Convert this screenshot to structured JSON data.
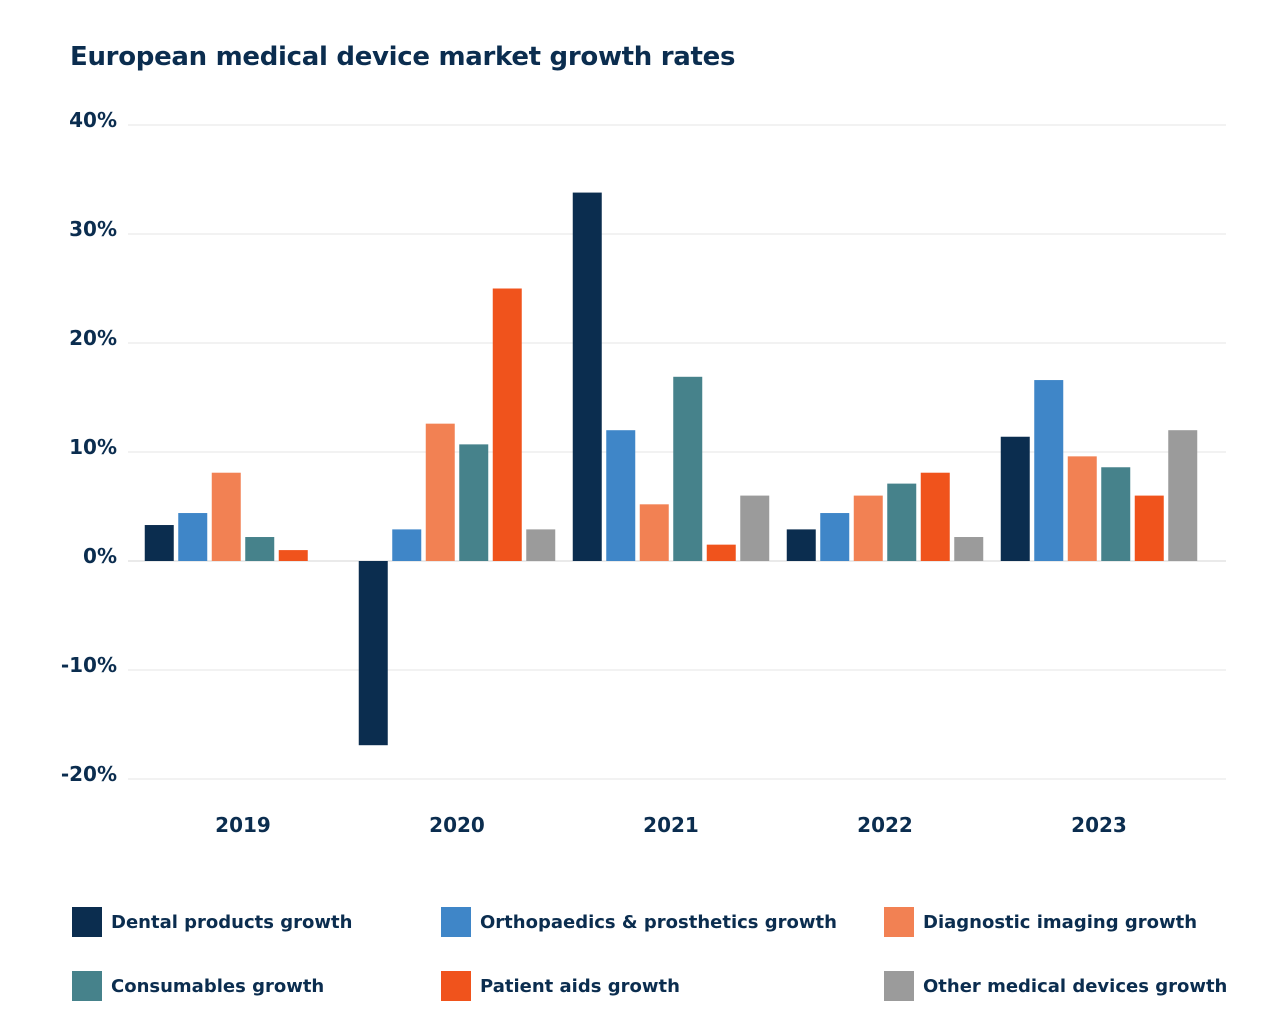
{
  "chart_data": {
    "type": "bar",
    "title": "European medical device market growth rates",
    "xlabel": "",
    "ylabel": "",
    "ylim": [
      -20,
      40
    ],
    "yticks": [
      -20,
      -10,
      0,
      10,
      20,
      30,
      40
    ],
    "ytick_labels": [
      "-20%",
      "-10%",
      "0%",
      "10%",
      "20%",
      "30%",
      "40%"
    ],
    "grid": true,
    "legend_position": "bottom",
    "categories": [
      "2019",
      "2020",
      "2021",
      "2022",
      "2023"
    ],
    "series": [
      {
        "name": "Dental products growth",
        "color": "#0b2d4f",
        "values": [
          3.3,
          -16.9,
          33.8,
          2.9,
          11.4
        ]
      },
      {
        "name": "Orthopaedics & prosthetics growth",
        "color": "#3f86c8",
        "values": [
          4.4,
          2.9,
          12.0,
          4.4,
          16.6
        ]
      },
      {
        "name": "Diagnostic imaging growth",
        "color": "#f28153",
        "values": [
          8.1,
          12.6,
          5.2,
          6.0,
          9.6
        ]
      },
      {
        "name": "Consumables growth",
        "color": "#46828b",
        "values": [
          2.2,
          10.7,
          16.9,
          7.1,
          8.6
        ]
      },
      {
        "name": "Patient aids growth",
        "color": "#f0531c",
        "values": [
          1.0,
          25.0,
          1.5,
          8.1,
          6.0
        ]
      },
      {
        "name": "Other medical devices growth",
        "color": "#9b9b9b",
        "values": [
          null,
          2.9,
          6.0,
          2.2,
          12.0
        ]
      }
    ]
  }
}
